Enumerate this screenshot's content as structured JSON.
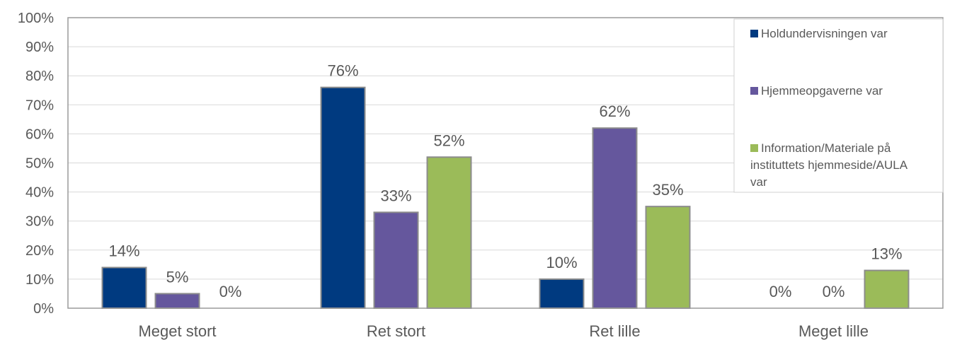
{
  "chart_data": {
    "type": "bar",
    "categories": [
      "Meget stort",
      "Ret stort",
      "Ret lille",
      "Meget lille"
    ],
    "series": [
      {
        "name": "Holdundervisningen var",
        "color": "#003A80",
        "values": [
          14,
          76,
          10,
          0
        ]
      },
      {
        "name": "Hjemmeopgaverne var",
        "color": "#65579D",
        "values": [
          5,
          33,
          62,
          0
        ]
      },
      {
        "name_lines": [
          "Information/Materiale på",
          "instituttets hjemmeside/AULA",
          "var"
        ],
        "color": "#9BBB59",
        "values": [
          0,
          52,
          35,
          13
        ]
      }
    ],
    "y_ticks": [
      "0%",
      "10%",
      "20%",
      "30%",
      "40%",
      "50%",
      "60%",
      "70%",
      "80%",
      "90%",
      "100%"
    ],
    "ylim": [
      0,
      100
    ],
    "grid": true,
    "legend_position": "top-right",
    "data_label_suffix": "%"
  }
}
